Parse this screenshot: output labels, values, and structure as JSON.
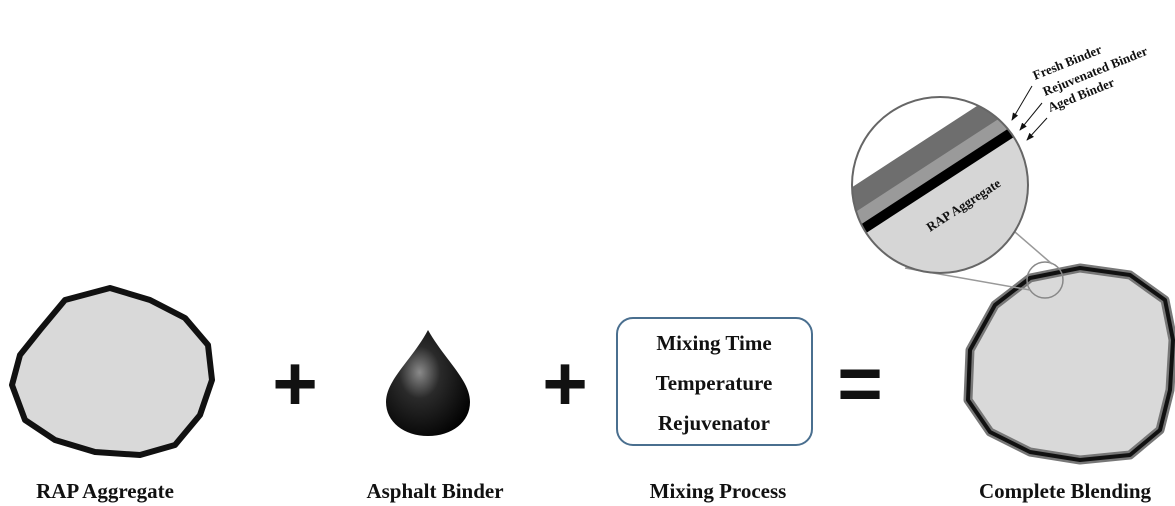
{
  "components": [
    {
      "label": "RAP Aggregate"
    },
    {
      "label": "Asphalt Binder"
    },
    {
      "label": "Mixing Process",
      "factors": [
        "Mixing Time",
        "Temperature",
        "Rejuvenator"
      ]
    },
    {
      "label": "Complete Blending"
    }
  ],
  "operators": [
    "+",
    "+",
    "="
  ],
  "zoom": {
    "layers": [
      "Fresh Binder",
      "Rejuvenated Binder",
      "Aged Binder"
    ],
    "core": "RAP Aggregate"
  }
}
